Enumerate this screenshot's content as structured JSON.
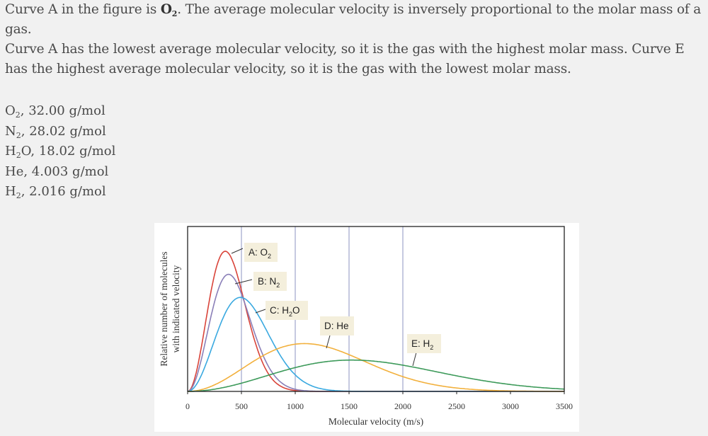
{
  "intro": {
    "pre": "Curve A in the figure is ",
    "bold": "O",
    "bold_sub": "2",
    "post": ". The average molecular velocity is inversely proportional to the molar mass of a gas."
  },
  "explanation": "Curve A has the lowest average molecular velocity, so it is the gas with the highest molar mass. Curve E has the highest average molecular velocity, so it is the gas with the lowest molar mass.",
  "molar_masses": [
    {
      "base": "O",
      "sub": "2",
      "rest": ", 32.00 g/mol"
    },
    {
      "base": "N",
      "sub": "2",
      "rest": ", 28.02 g/mol"
    },
    {
      "base": "H",
      "sub": "2",
      "rest": "O, 18.02 g/mol"
    },
    {
      "base": "He",
      "sub": "",
      "rest": ", 4.003 g/mol"
    },
    {
      "base": "H",
      "sub": "2",
      "rest": ", 2.016 g/mol"
    }
  ],
  "chart_data": {
    "type": "line",
    "xlabel": "Molecular velocity (m/s)",
    "ylabel": [
      "Relative number of molecules",
      "with indicated velocity"
    ],
    "xlim": [
      0,
      3500
    ],
    "xticks": [
      "0",
      "500",
      "1000",
      "1500",
      "2000",
      "2500",
      "3000",
      "3500"
    ],
    "grid_x": [
      500,
      1000,
      1500,
      2000
    ],
    "series": [
      {
        "label": "A: O",
        "sub": "2",
        "tail": "",
        "peak_velocity": 350,
        "relative_peak": 0.85,
        "color": "#d9443a"
      },
      {
        "label": "B: N",
        "sub": "2",
        "tail": "",
        "peak_velocity": 380,
        "relative_peak": 0.71,
        "color": "#8a7fb8"
      },
      {
        "label": "C: H",
        "sub": "2",
        "tail": "O",
        "peak_velocity": 490,
        "relative_peak": 0.57,
        "color": "#3aa9e0"
      },
      {
        "label": "D: He",
        "sub": "",
        "tail": "",
        "peak_velocity": 1085,
        "relative_peak": 0.29,
        "color": "#f2b03c"
      },
      {
        "label": "E: H",
        "sub": "2",
        "tail": "",
        "peak_velocity": 1525,
        "relative_peak": 0.19,
        "color": "#3d9a5a"
      }
    ]
  }
}
